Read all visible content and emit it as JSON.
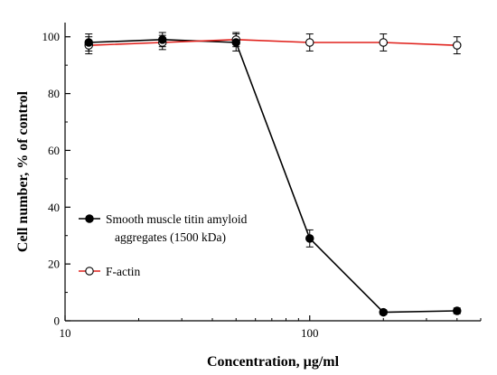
{
  "chart_data": {
    "type": "line",
    "xlabel": "Concentration, µg/ml",
    "ylabel": "Cell number, % of control",
    "xscale": "log",
    "xlim": [
      10,
      500
    ],
    "ylim": [
      0,
      105
    ],
    "x_ticks": [
      10,
      100
    ],
    "x_tick_labels": [
      "10",
      "100"
    ],
    "y_ticks": [
      0,
      20,
      40,
      60,
      80,
      100
    ],
    "y_tick_labels": [
      "0",
      "20",
      "40",
      "60",
      "80",
      "100"
    ],
    "grid": false,
    "legend_position": "left-middle",
    "series": [
      {
        "name": "Smooth muscle titin amyloid aggregates (1500 kDa)",
        "legend_lines": [
          "Smooth muscle titin amyloid",
          "aggregates (1500 kDa)"
        ],
        "color": "#000000",
        "marker": "filled-circle",
        "x": [
          12.5,
          25,
          50,
          100,
          200,
          400
        ],
        "y": [
          98,
          99,
          98,
          29,
          3,
          3.5
        ],
        "error": [
          3,
          2.5,
          3,
          3,
          0.8,
          1
        ]
      },
      {
        "name": "F-actin",
        "legend_lines": [
          "F-actin"
        ],
        "color": "#e0201b",
        "marker": "open-circle",
        "x": [
          12.5,
          25,
          50,
          100,
          200,
          400
        ],
        "y": [
          97,
          98,
          99,
          98,
          98,
          97
        ],
        "error": [
          3,
          2.5,
          2.5,
          3,
          3,
          3
        ]
      }
    ]
  }
}
